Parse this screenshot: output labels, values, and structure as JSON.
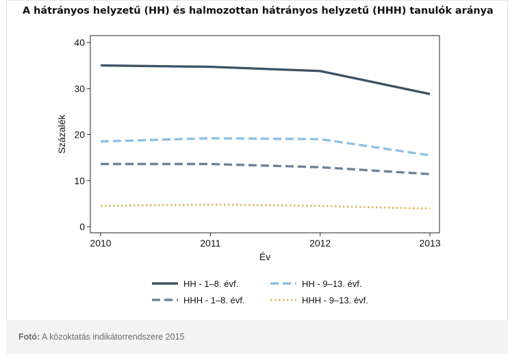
{
  "chart_data": {
    "type": "line",
    "title": "A hátrányos helyzetű (HH) és halmozottan hátrányos helyzetű (HHH) tanulók aránya",
    "xlabel": "Év",
    "ylabel": "Százalék",
    "x": [
      2010,
      2011,
      2012,
      2013
    ],
    "x_ticks": [
      "2010",
      "2011",
      "2012",
      "2013"
    ],
    "y_ticks": [
      "0",
      "10",
      "20",
      "30",
      "40"
    ],
    "ylim": [
      0,
      40
    ],
    "grid": false,
    "legend_position": "bottom",
    "series": [
      {
        "name": "HH - 1–8. évf.",
        "values": [
          35.0,
          34.7,
          33.8,
          28.8
        ],
        "color": "#3e5468",
        "style": "solid"
      },
      {
        "name": "HH - 9–13. évf.",
        "values": [
          18.5,
          19.2,
          19.0,
          15.5
        ],
        "color": "#8ec0e4",
        "style": "dashed"
      },
      {
        "name": "HHH - 1–8. évf.",
        "values": [
          13.6,
          13.6,
          12.9,
          11.4
        ],
        "color": "#6e8298",
        "style": "dashed"
      },
      {
        "name": "HHH - 9–13. évf.",
        "values": [
          4.5,
          4.8,
          4.5,
          3.9
        ],
        "color": "#d6be68",
        "style": "dotted"
      }
    ]
  },
  "caption": {
    "label": "Fotó:",
    "text": "A közoktatás indikátorrendszere 2015"
  }
}
